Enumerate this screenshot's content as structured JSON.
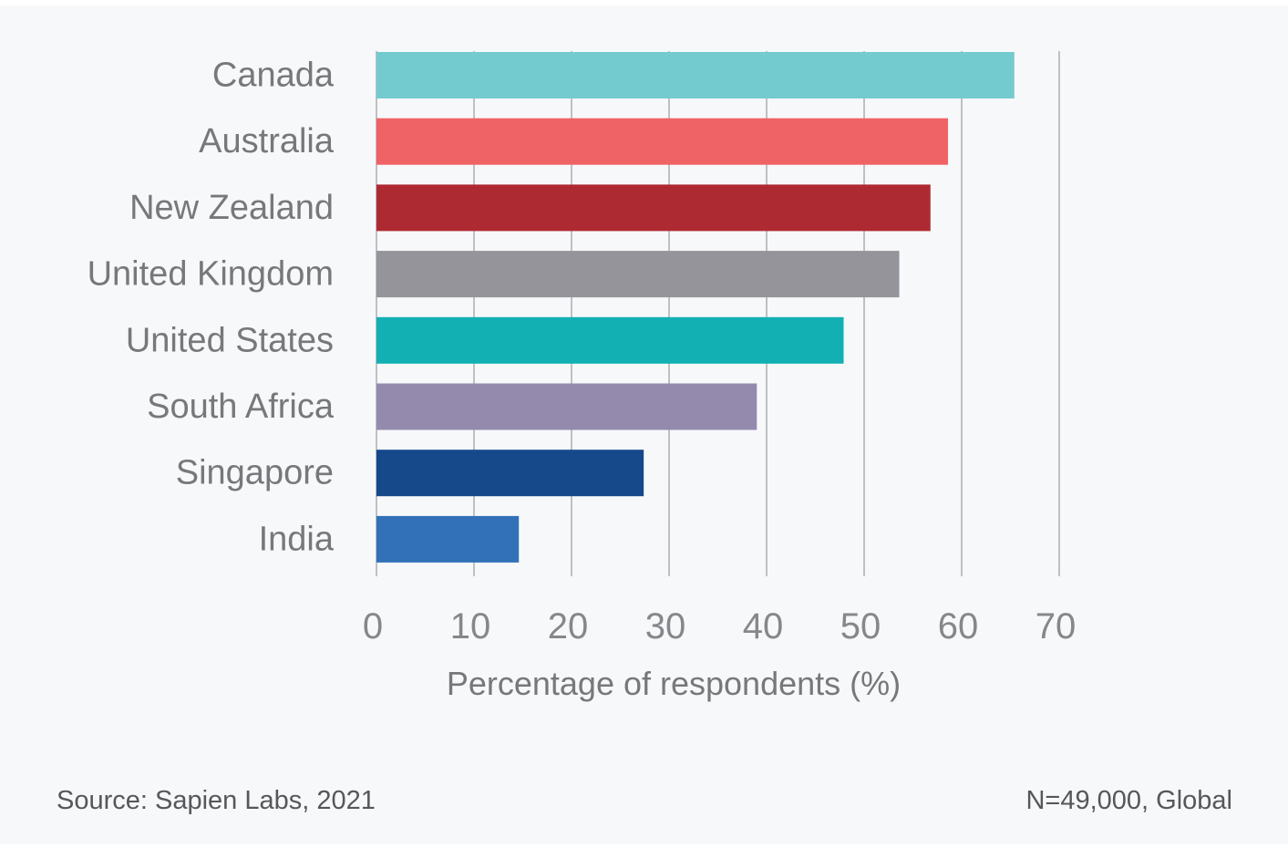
{
  "chart_data": {
    "type": "bar",
    "orientation": "horizontal",
    "categories": [
      "Canada",
      "Australia",
      "New Zealand",
      "United Kingdom",
      "United States",
      "South Africa",
      "Singapore",
      "India"
    ],
    "values": [
      65.4,
      58.6,
      56.8,
      53.6,
      47.9,
      39.0,
      27.4,
      14.6
    ],
    "colors": [
      "#74cbcf",
      "#ef6265",
      "#ae2a32",
      "#96949b",
      "#12b0b2",
      "#948aae",
      "#15498a",
      "#3271b8"
    ],
    "xlabel": "Percentage of respondents (%)",
    "ylabel": "",
    "xlim": [
      0,
      70
    ],
    "xticks": [
      0,
      10,
      20,
      30,
      40,
      50,
      60,
      70
    ],
    "grid": "vertical"
  },
  "footer": {
    "source": "Source: Sapien Labs, 2021",
    "sample": "N=49,000, Global"
  }
}
